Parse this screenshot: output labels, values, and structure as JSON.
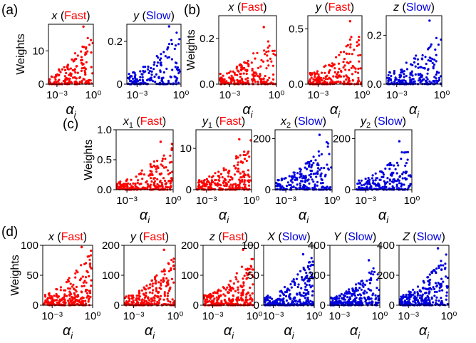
{
  "colors": {
    "fast": "#ff0000",
    "slow": "#0000dd",
    "text": "#000000"
  },
  "labels": {
    "ylabel": "Weights",
    "xlabel_symbol": "α",
    "xlabel_sub": "i",
    "fast": "Fast",
    "slow": "Slow"
  },
  "panels": [
    {
      "letter": "(a)"
    },
    {
      "letter": "(b)"
    },
    {
      "letter": "(c)"
    },
    {
      "letter": "(d)"
    }
  ],
  "chart_data": [
    {
      "type": "scatter",
      "panel": "(a)",
      "var": "x",
      "sub": "",
      "speed": "Fast",
      "xscale": "log",
      "xlim": [
        0.0002,
        1
      ],
      "ylim": [
        0,
        18
      ],
      "yticks": [
        "0",
        "10"
      ],
      "ytick_values": [
        0,
        10
      ],
      "xticks": [
        "10⁻³",
        "10⁰"
      ],
      "xtick_values": [
        0.001,
        1
      ],
      "show_xlabel": true,
      "show_ylabel": true,
      "seed": 11,
      "n": 170,
      "max_val": 17.3
    },
    {
      "type": "scatter",
      "panel": "(a)",
      "var": "y",
      "sub": "",
      "speed": "Slow",
      "xscale": "log",
      "xlim": [
        0.0002,
        1
      ],
      "ylim": [
        0,
        0.28
      ],
      "yticks": [
        "0",
        "0.2"
      ],
      "ytick_values": [
        0,
        0.2
      ],
      "xticks": [
        "10⁻³",
        "10⁰"
      ],
      "xtick_values": [
        0.001,
        1
      ],
      "show_xlabel": false,
      "show_ylabel": false,
      "seed": 12,
      "n": 170,
      "max_val": 0.27
    },
    {
      "type": "scatter",
      "panel": "(b)",
      "var": "x",
      "sub": "",
      "speed": "Fast",
      "xscale": "log",
      "xlim": [
        0.0002,
        1
      ],
      "ylim": [
        0,
        0.3
      ],
      "yticks": [
        "0.0",
        "0.2"
      ],
      "ytick_values": [
        0,
        0.2
      ],
      "xticks": [
        "10⁻³",
        "10⁰"
      ],
      "xtick_values": [
        0.001,
        1
      ],
      "show_xlabel": true,
      "show_ylabel": true,
      "seed": 21,
      "n": 200,
      "max_val": 0.25
    },
    {
      "type": "scatter",
      "panel": "(b)",
      "var": "y",
      "sub": "",
      "speed": "Fast",
      "xscale": "log",
      "xlim": [
        0.0002,
        1
      ],
      "ylim": [
        0,
        0.62
      ],
      "yticks": [
        "0.0",
        "0.5"
      ],
      "ytick_values": [
        0,
        0.5
      ],
      "xticks": [
        "10⁻³",
        "10⁰"
      ],
      "xtick_values": [
        0.001,
        1
      ],
      "show_xlabel": true,
      "show_ylabel": false,
      "seed": 22,
      "n": 200,
      "max_val": 0.57
    },
    {
      "type": "scatter",
      "panel": "(b)",
      "var": "z",
      "sub": "",
      "speed": "Slow",
      "xscale": "log",
      "xlim": [
        0.0002,
        1
      ],
      "ylim": [
        0,
        0.28
      ],
      "yticks": [
        "0.0",
        "0.2"
      ],
      "ytick_values": [
        0,
        0.2
      ],
      "xticks": [
        "10⁻³",
        "10⁰"
      ],
      "xtick_values": [
        0.001,
        1
      ],
      "show_xlabel": true,
      "show_ylabel": false,
      "seed": 23,
      "n": 200,
      "max_val": 0.26
    },
    {
      "type": "scatter",
      "panel": "(c)",
      "var": "x",
      "sub": "1",
      "speed": "Fast",
      "xscale": "log",
      "xlim": [
        0.0002,
        1
      ],
      "ylim": [
        0,
        1.0
      ],
      "yticks": [
        "0.0",
        "0.5",
        "1.0"
      ],
      "ytick_values": [
        0,
        0.5,
        1.0
      ],
      "xticks": [
        "10⁻³",
        "10⁰"
      ],
      "xtick_values": [
        0.001,
        1
      ],
      "show_xlabel": true,
      "show_ylabel": true,
      "seed": 31,
      "n": 220,
      "max_val": 0.8
    },
    {
      "type": "scatter",
      "panel": "(c)",
      "var": "y",
      "sub": "1",
      "speed": "Fast",
      "xscale": "log",
      "xlim": [
        0.0002,
        1
      ],
      "ylim": [
        0,
        14.5
      ],
      "yticks": [
        "0",
        "10"
      ],
      "ytick_values": [
        0,
        10
      ],
      "xticks": [
        "10⁻³",
        "10⁰"
      ],
      "xtick_values": [
        0.001,
        1
      ],
      "show_xlabel": true,
      "show_ylabel": false,
      "seed": 32,
      "n": 220,
      "max_val": 12.2
    },
    {
      "type": "scatter",
      "panel": "(c)",
      "var": "x",
      "sub": "2",
      "speed": "Slow",
      "xscale": "log",
      "xlim": [
        0.0002,
        1
      ],
      "ylim": [
        0,
        235
      ],
      "yticks": [
        "0",
        "200"
      ],
      "ytick_values": [
        0,
        200
      ],
      "xticks": [
        "10⁻³",
        "10⁰"
      ],
      "xtick_values": [
        0.001,
        1
      ],
      "show_xlabel": true,
      "show_ylabel": false,
      "seed": 33,
      "n": 200,
      "max_val": 215
    },
    {
      "type": "scatter",
      "panel": "(c)",
      "var": "y",
      "sub": "2",
      "speed": "Slow",
      "xscale": "log",
      "xlim": [
        0.0002,
        1
      ],
      "ylim": [
        0,
        235
      ],
      "yticks": [
        "0",
        "200"
      ],
      "ytick_values": [
        0,
        200
      ],
      "xticks": [
        "10⁻³",
        "10⁰"
      ],
      "xtick_values": [
        0.001,
        1
      ],
      "show_xlabel": true,
      "show_ylabel": false,
      "seed": 34,
      "n": 200,
      "max_val": 190
    },
    {
      "type": "scatter",
      "panel": "(d)",
      "var": "x",
      "sub": "",
      "speed": "Fast",
      "xscale": "log",
      "xlim": [
        0.0002,
        1
      ],
      "ylim": [
        0,
        100
      ],
      "yticks": [
        "0",
        "50",
        "100"
      ],
      "ytick_values": [
        0,
        50,
        100
      ],
      "xticks": [
        "10⁻³",
        "10⁰"
      ],
      "xtick_values": [
        0.001,
        1
      ],
      "show_xlabel": true,
      "show_ylabel": true,
      "seed": 41,
      "n": 240,
      "max_val": 97
    },
    {
      "type": "scatter",
      "panel": "(d)",
      "var": "y",
      "sub": "",
      "speed": "Fast",
      "xscale": "log",
      "xlim": [
        0.0002,
        1
      ],
      "ylim": [
        0,
        200
      ],
      "yticks": [
        "0",
        "100",
        "200"
      ],
      "ytick_values": [
        0,
        100,
        200
      ],
      "xticks": [
        "10⁻³",
        "10⁰"
      ],
      "xtick_values": [
        0.001,
        1
      ],
      "show_xlabel": true,
      "show_ylabel": false,
      "seed": 42,
      "n": 240,
      "max_val": 185
    },
    {
      "type": "scatter",
      "panel": "(d)",
      "var": "z",
      "sub": "",
      "speed": "Fast",
      "xscale": "log",
      "xlim": [
        0.0002,
        1
      ],
      "ylim": [
        0,
        200
      ],
      "yticks": [
        "0",
        "100",
        "200"
      ],
      "ytick_values": [
        0,
        100,
        200
      ],
      "xticks": [
        "10⁻³",
        "10⁰"
      ],
      "xtick_values": [
        0.001,
        1
      ],
      "show_xlabel": true,
      "show_ylabel": false,
      "seed": 43,
      "n": 240,
      "max_val": 185
    },
    {
      "type": "scatter",
      "panel": "(d)",
      "var": "X",
      "sub": "",
      "speed": "Slow",
      "xscale": "log",
      "xlim": [
        0.0002,
        1
      ],
      "ylim": [
        0,
        100
      ],
      "yticks": [
        "0",
        "50",
        "100"
      ],
      "ytick_values": [
        0,
        50,
        100
      ],
      "xticks": [
        "10⁻³",
        "10⁰"
      ],
      "xtick_values": [
        0.001,
        1
      ],
      "show_xlabel": true,
      "show_ylabel": false,
      "seed": 44,
      "n": 260,
      "max_val": 85
    },
    {
      "type": "scatter",
      "panel": "(d)",
      "var": "Y",
      "sub": "",
      "speed": "Slow",
      "xscale": "log",
      "xlim": [
        0.0002,
        1
      ],
      "ylim": [
        0,
        400
      ],
      "yticks": [
        "0",
        "200",
        "400"
      ],
      "ytick_values": [
        0,
        200,
        400
      ],
      "xticks": [
        "10⁻³",
        "10⁰"
      ],
      "xtick_values": [
        0.001,
        1
      ],
      "show_xlabel": true,
      "show_ylabel": false,
      "seed": 45,
      "n": 260,
      "max_val": 300
    },
    {
      "type": "scatter",
      "panel": "(d)",
      "var": "Z",
      "sub": "",
      "speed": "Slow",
      "xscale": "log",
      "xlim": [
        0.0002,
        1
      ],
      "ylim": [
        0,
        400
      ],
      "yticks": [
        "0",
        "200",
        "400"
      ],
      "ytick_values": [
        0,
        200,
        400
      ],
      "xticks": [
        "10⁻³",
        "10⁰"
      ],
      "xtick_values": [
        0.001,
        1
      ],
      "show_xlabel": true,
      "show_ylabel": false,
      "seed": 46,
      "n": 260,
      "max_val": 380
    }
  ]
}
